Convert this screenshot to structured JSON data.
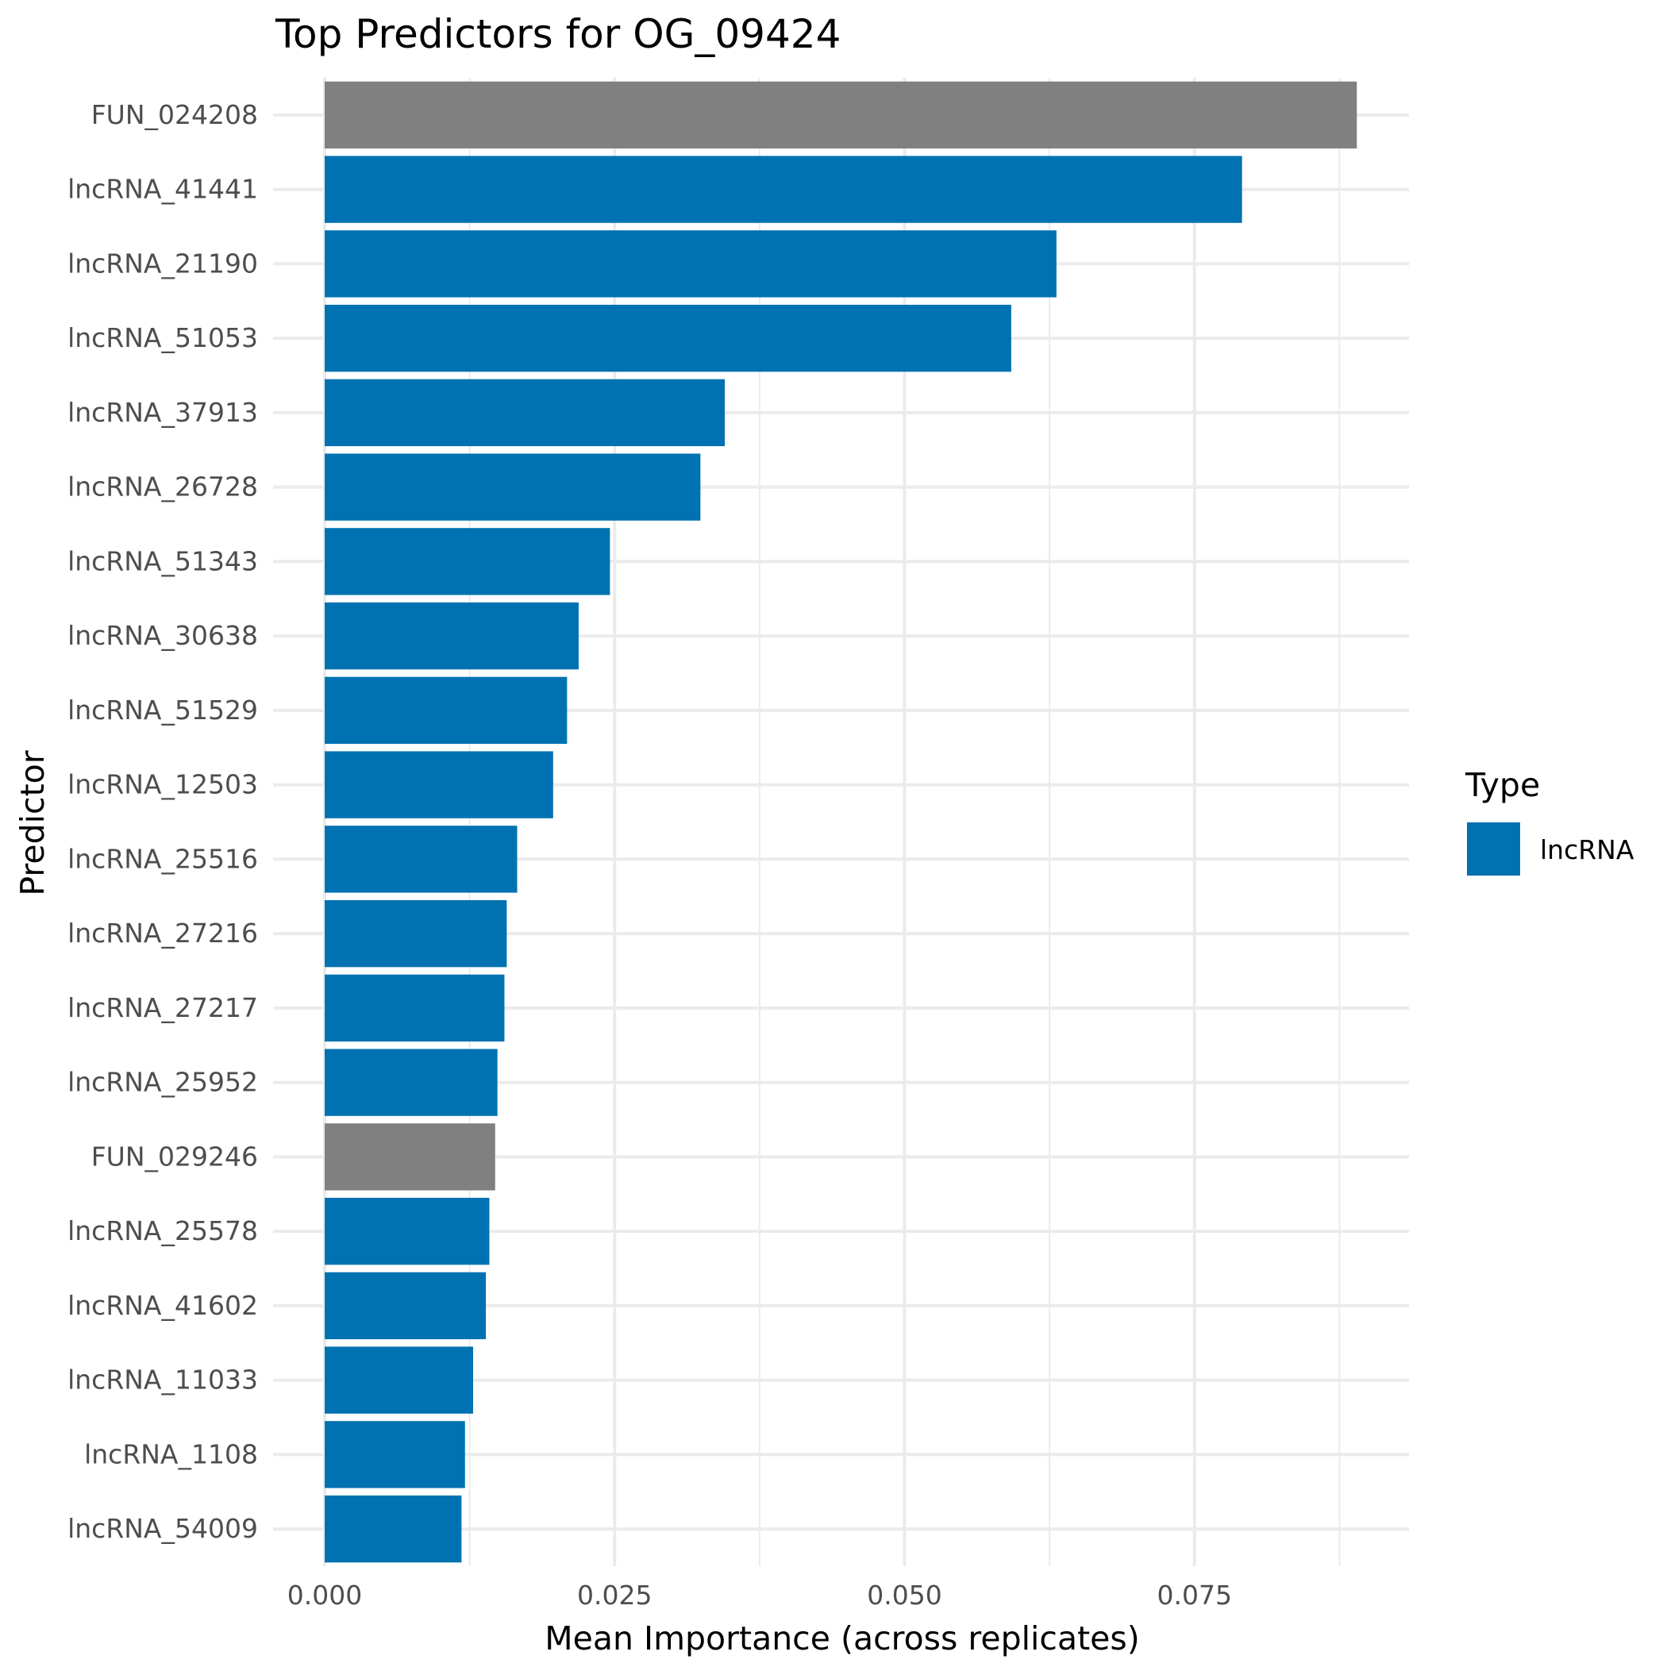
{
  "colors": {
    "lncRNA": "#0072b2",
    "other": "#808080",
    "grid": "#ebebeb",
    "tick_text": "#4d4d4d"
  },
  "chart_data": {
    "type": "bar",
    "orientation": "horizontal",
    "title": "Top Predictors for OG_09424",
    "xlabel": "Mean Importance (across replicates)",
    "ylabel": "Predictor",
    "xlim": [
      0,
      0.0935
    ],
    "x_ticks": [
      0.0,
      0.025,
      0.05,
      0.075
    ],
    "x_tick_labels": [
      "0.000",
      "0.025",
      "0.050",
      "0.075"
    ],
    "legend": {
      "title": "Type",
      "position": "right",
      "entries": [
        {
          "label": "lncRNA",
          "color": "#0072b2"
        }
      ]
    },
    "grid": true,
    "bars": [
      {
        "label": "FUN_024208",
        "value": 0.089,
        "type": "other"
      },
      {
        "label": "lncRNA_41441",
        "value": 0.0791,
        "type": "lncRNA"
      },
      {
        "label": "lncRNA_21190",
        "value": 0.0631,
        "type": "lncRNA"
      },
      {
        "label": "lncRNA_51053",
        "value": 0.0592,
        "type": "lncRNA"
      },
      {
        "label": "lncRNA_37913",
        "value": 0.0345,
        "type": "lncRNA"
      },
      {
        "label": "lncRNA_26728",
        "value": 0.0324,
        "type": "lncRNA"
      },
      {
        "label": "lncRNA_51343",
        "value": 0.0246,
        "type": "lncRNA"
      },
      {
        "label": "lncRNA_30638",
        "value": 0.0219,
        "type": "lncRNA"
      },
      {
        "label": "lncRNA_51529",
        "value": 0.0209,
        "type": "lncRNA"
      },
      {
        "label": "lncRNA_12503",
        "value": 0.0197,
        "type": "lncRNA"
      },
      {
        "label": "lncRNA_25516",
        "value": 0.0166,
        "type": "lncRNA"
      },
      {
        "label": "lncRNA_27216",
        "value": 0.0157,
        "type": "lncRNA"
      },
      {
        "label": "lncRNA_27217",
        "value": 0.0155,
        "type": "lncRNA"
      },
      {
        "label": "lncRNA_25952",
        "value": 0.0149,
        "type": "lncRNA"
      },
      {
        "label": "FUN_029246",
        "value": 0.0147,
        "type": "other"
      },
      {
        "label": "lncRNA_25578",
        "value": 0.0142,
        "type": "lncRNA"
      },
      {
        "label": "lncRNA_41602",
        "value": 0.0139,
        "type": "lncRNA"
      },
      {
        "label": "lncRNA_11033",
        "value": 0.0128,
        "type": "lncRNA"
      },
      {
        "label": "lncRNA_1108",
        "value": 0.0121,
        "type": "lncRNA"
      },
      {
        "label": "lncRNA_54009",
        "value": 0.0118,
        "type": "lncRNA"
      }
    ]
  }
}
